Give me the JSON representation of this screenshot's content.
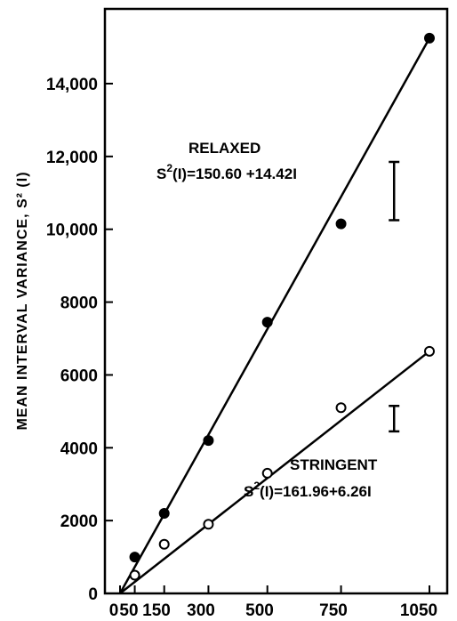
{
  "chart_data": {
    "type": "scatter",
    "ylabel": "MEAN INTERVAL VARIANCE, S² (I)",
    "xlim": [
      0,
      1100
    ],
    "ylim": [
      0,
      16000
    ],
    "x_ticks": [
      0,
      50,
      150,
      300,
      500,
      750,
      1050
    ],
    "x_tick_labels": [
      "0",
      "50",
      "150",
      "300",
      "500",
      "750",
      "1050"
    ],
    "y_ticks": [
      0,
      2000,
      4000,
      6000,
      8000,
      10000,
      12000,
      14000
    ],
    "y_tick_labels": [
      "0",
      "2000",
      "4000",
      "6000",
      "8000",
      "10,000",
      "12,000",
      "14,000"
    ],
    "series": [
      {
        "name": "RELAXED",
        "marker": "filled-circle",
        "equation": "S²(I) = 150.60 + 14.42I",
        "fit": {
          "intercept": 150.6,
          "slope": 14.42
        },
        "x": [
          0,
          50,
          150,
          300,
          500,
          750,
          1050
        ],
        "y": [
          0,
          1000,
          2200,
          4200,
          7450,
          10150,
          15250
        ]
      },
      {
        "name": "STRINGENT",
        "marker": "open-circle",
        "equation": "S²(I) = 161.96 + 6.26I",
        "fit": {
          "intercept": 161.96,
          "slope": 6.26
        },
        "x": [
          0,
          50,
          150,
          300,
          500,
          750,
          1050
        ],
        "y": [
          0,
          500,
          1350,
          1900,
          3300,
          5100,
          6650
        ]
      }
    ],
    "error_bars": [
      {
        "series": "RELAXED",
        "x": 930,
        "y_low": 10250,
        "y_high": 11850
      },
      {
        "series": "STRINGENT",
        "x": 930,
        "y_low": 4450,
        "y_high": 5150
      }
    ],
    "annotations": {
      "relaxed_label": "RELAXED",
      "relaxed_eq_prefix": "S",
      "relaxed_eq_sup": "2",
      "relaxed_eq_rest": "(I)=150.60 +14.42I",
      "stringent_label": "STRINGENT",
      "stringent_eq_prefix": "S",
      "stringent_eq_sup": "2",
      "stringent_eq_rest": "(I)=161.96+6.26I"
    },
    "grid": false
  }
}
